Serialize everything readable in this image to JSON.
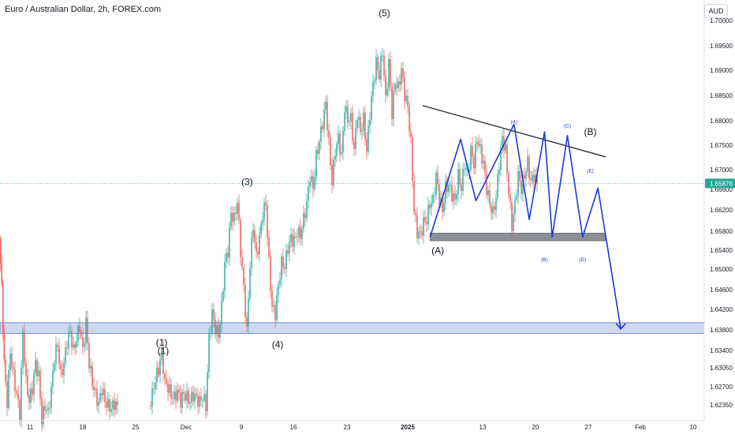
{
  "header": {
    "title": "Euro / Australian Dollar, 2h, FOREX.com"
  },
  "currency_button": "AUD",
  "colors": {
    "up": "#26a69a",
    "down": "#ef5350",
    "projection": "#1a3ad6",
    "support_zone": "#c5d1ee",
    "box": "#8c8f96",
    "trendline": "#2a2e39",
    "price_badge": "#26a69a",
    "price_line": "#26a69a"
  },
  "chart_data": {
    "type": "candlestick",
    "price_axis": {
      "ticks": [
        "1.70000",
        "1.69500",
        "1.69000",
        "1.68500",
        "1.68000",
        "1.67500",
        "1.67000",
        "1.66600",
        "1.66200",
        "1.65800",
        "1.65400",
        "1.65000",
        "1.64600",
        "1.64200",
        "1.63800",
        "1.63400",
        "1.63050",
        "1.62700",
        "1.62350"
      ],
      "current_price": "1.65876"
    },
    "time_axis": {
      "ticks": [
        "11",
        "18",
        "25",
        "Dec",
        "9",
        "16",
        "23",
        "2025",
        "13",
        "20",
        "27",
        "Feb",
        "10"
      ],
      "bold": [
        "2025"
      ]
    },
    "support_zone": [
      1.6348,
      1.6365
    ],
    "elliott_labels": [
      "(1)",
      "(2)",
      "(3)",
      "(4)",
      "(5)"
    ],
    "elliott_wave_labels": [
      {
        "text": "(1)",
        "date": "2024-11-28",
        "price": 1.6315
      },
      {
        "text": "(3)",
        "date": "2024-12-09",
        "price": 1.6585
      },
      {
        "text": "(4)",
        "date": "2024-12-13",
        "price": 1.6325
      },
      {
        "text": "(5)",
        "date": "2024-12-27",
        "price": 1.6855
      },
      {
        "text": "(A)",
        "date": "2025-01-03",
        "price": 1.6475
      },
      {
        "text": "(B)",
        "date": "2025-01-23",
        "price": 1.6665
      }
    ],
    "triangle_labels": [
      {
        "text": "(A)",
        "date": "2025-01-13",
        "price": 1.6683
      },
      {
        "text": "(B)",
        "date": "2025-01-17",
        "price": 1.6463
      },
      {
        "text": "(C)",
        "date": "2025-01-20",
        "price": 1.6677
      },
      {
        "text": "(D)",
        "date": "2025-01-22",
        "price": 1.6463
      },
      {
        "text": "(E)",
        "date": "2025-01-23",
        "price": 1.6605
      }
    ],
    "trendline": [
      {
        "date": "2025-01-01",
        "price": 1.6712
      },
      {
        "date": "2025-01-25",
        "price": 1.663
      }
    ],
    "consolidation_box": {
      "start": "2025-01-02",
      "end": "2025-01-25",
      "low": 1.6496,
      "high": 1.6508
    },
    "projection_path": [
      {
        "date": "2025-01-02",
        "price": 1.6502
      },
      {
        "date": "2025-01-06",
        "price": 1.6658
      },
      {
        "date": "2025-01-08",
        "price": 1.656
      },
      {
        "date": "2025-01-13",
        "price": 1.6682
      },
      {
        "date": "2025-01-15",
        "price": 1.653
      },
      {
        "date": "2025-01-17",
        "price": 1.667
      },
      {
        "date": "2025-01-18",
        "price": 1.6502
      },
      {
        "date": "2025-01-20",
        "price": 1.6664
      },
      {
        "date": "2025-01-22",
        "price": 1.6502
      },
      {
        "date": "2025-01-24",
        "price": 1.658
      },
      {
        "date": "2025-01-27",
        "price": 1.6355
      }
    ],
    "price_path": [
      [
        0,
        1.65
      ],
      [
        3,
        1.642
      ],
      [
        6,
        1.63
      ],
      [
        10,
        1.6238
      ],
      [
        14,
        1.632
      ],
      [
        18,
        1.628
      ],
      [
        22,
        1.625
      ],
      [
        26,
        1.622
      ],
      [
        30,
        1.635
      ],
      [
        34,
        1.627
      ],
      [
        38,
        1.624
      ],
      [
        42,
        1.626
      ],
      [
        46,
        1.63
      ],
      [
        50,
        1.628
      ],
      [
        54,
        1.621
      ],
      [
        58,
        1.6232
      ],
      [
        62,
        1.622
      ],
      [
        66,
        1.6258
      ],
      [
        70,
        1.631
      ],
      [
        74,
        1.633
      ],
      [
        78,
        1.628
      ],
      [
        82,
        1.63
      ],
      [
        86,
        1.6335
      ],
      [
        90,
        1.635
      ],
      [
        94,
        1.632
      ],
      [
        98,
        1.634
      ],
      [
        102,
        1.636
      ],
      [
        106,
        1.632
      ],
      [
        110,
        1.6365
      ],
      [
        114,
        1.63
      ],
      [
        118,
        1.627
      ],
      [
        122,
        1.625
      ],
      [
        126,
        1.6235
      ],
      [
        130,
        1.626
      ],
      [
        134,
        1.624
      ],
      [
        138,
        1.6232
      ],
      [
        142,
        1.6228
      ],
      [
        146,
        1.6236
      ],
      [
        150,
        1.623
      ],
      [
        190,
        1.6232
      ],
      [
        194,
        1.625
      ],
      [
        198,
        1.6275
      ],
      [
        202,
        1.629
      ],
      [
        206,
        1.6318
      ],
      [
        210,
        1.627
      ],
      [
        214,
        1.6262
      ],
      [
        218,
        1.625
      ],
      [
        222,
        1.6245
      ],
      [
        226,
        1.6255
      ],
      [
        230,
        1.624
      ],
      [
        234,
        1.6252
      ],
      [
        238,
        1.6245
      ],
      [
        242,
        1.624
      ],
      [
        246,
        1.625
      ],
      [
        250,
        1.6244
      ],
      [
        254,
        1.6238
      ],
      [
        258,
        1.6248
      ],
      [
        262,
        1.6232
      ],
      [
        266,
        1.634
      ],
      [
        270,
        1.638
      ],
      [
        274,
        1.6355
      ],
      [
        278,
        1.6345
      ],
      [
        282,
        1.639
      ],
      [
        286,
        1.646
      ],
      [
        290,
        1.648
      ],
      [
        294,
        1.654
      ],
      [
        298,
        1.653
      ],
      [
        302,
        1.656
      ],
      [
        306,
        1.648
      ],
      [
        310,
        1.642
      ],
      [
        314,
        1.635
      ],
      [
        318,
        1.646
      ],
      [
        322,
        1.652
      ],
      [
        326,
        1.647
      ],
      [
        330,
        1.65
      ],
      [
        334,
        1.654
      ],
      [
        338,
        1.6555
      ],
      [
        342,
        1.646
      ],
      [
        346,
        1.639
      ],
      [
        350,
        1.638
      ],
      [
        354,
        1.6425
      ],
      [
        358,
        1.646
      ],
      [
        362,
        1.6455
      ],
      [
        366,
        1.6485
      ],
      [
        370,
        1.65
      ],
      [
        374,
        1.6495
      ],
      [
        378,
        1.651
      ],
      [
        382,
        1.6505
      ],
      [
        386,
        1.653
      ],
      [
        390,
        1.6555
      ],
      [
        394,
        1.66
      ],
      [
        398,
        1.658
      ],
      [
        402,
        1.663
      ],
      [
        406,
        1.6655
      ],
      [
        410,
        1.6685
      ],
      [
        414,
        1.6715
      ],
      [
        418,
        1.665
      ],
      [
        422,
        1.659
      ],
      [
        426,
        1.664
      ],
      [
        430,
        1.666
      ],
      [
        434,
        1.663
      ],
      [
        438,
        1.671
      ],
      [
        442,
        1.669
      ],
      [
        446,
        1.669
      ],
      [
        450,
        1.664
      ],
      [
        454,
        1.67
      ],
      [
        458,
        1.667
      ],
      [
        462,
        1.669
      ],
      [
        466,
        1.664
      ],
      [
        470,
        1.67
      ],
      [
        474,
        1.6745
      ],
      [
        478,
        1.678
      ],
      [
        482,
        1.676
      ],
      [
        486,
        1.68
      ],
      [
        490,
        1.672
      ],
      [
        494,
        1.678
      ],
      [
        498,
        1.67
      ],
      [
        502,
        1.675
      ],
      [
        506,
        1.674
      ],
      [
        510,
        1.677
      ],
      [
        514,
        1.673
      ],
      [
        518,
        1.671
      ],
      [
        522,
        1.665
      ],
      [
        526,
        1.6545
      ],
      [
        530,
        1.651
      ],
      [
        534,
        1.6505
      ],
      [
        538,
        1.6525
      ],
      [
        542,
        1.653
      ],
      [
        546,
        1.6555
      ],
      [
        550,
        1.656
      ],
      [
        554,
        1.66
      ],
      [
        558,
        1.6565
      ],
      [
        562,
        1.6545
      ],
      [
        566,
        1.658
      ],
      [
        570,
        1.6585
      ],
      [
        574,
        1.657
      ],
      [
        578,
        1.656
      ],
      [
        582,
        1.66
      ],
      [
        586,
        1.658
      ],
      [
        590,
        1.662
      ],
      [
        594,
        1.66
      ],
      [
        598,
        1.664
      ],
      [
        602,
        1.662
      ],
      [
        606,
        1.666
      ],
      [
        610,
        1.664
      ],
      [
        614,
        1.662
      ],
      [
        618,
        1.658
      ],
      [
        622,
        1.6555
      ],
      [
        626,
        1.654
      ],
      [
        630,
        1.6565
      ],
      [
        634,
        1.662
      ],
      [
        638,
        1.666
      ],
      [
        642,
        1.664
      ],
      [
        646,
        1.6575
      ],
      [
        650,
        1.652
      ],
      [
        654,
        1.6555
      ],
      [
        658,
        1.66
      ],
      [
        662,
        1.658
      ],
      [
        666,
        1.66
      ],
      [
        670,
        1.662
      ],
      [
        674,
        1.659
      ],
      [
        678,
        1.66
      ],
      [
        682,
        1.6587
      ]
    ],
    "xlabel": "",
    "ylabel": ""
  }
}
